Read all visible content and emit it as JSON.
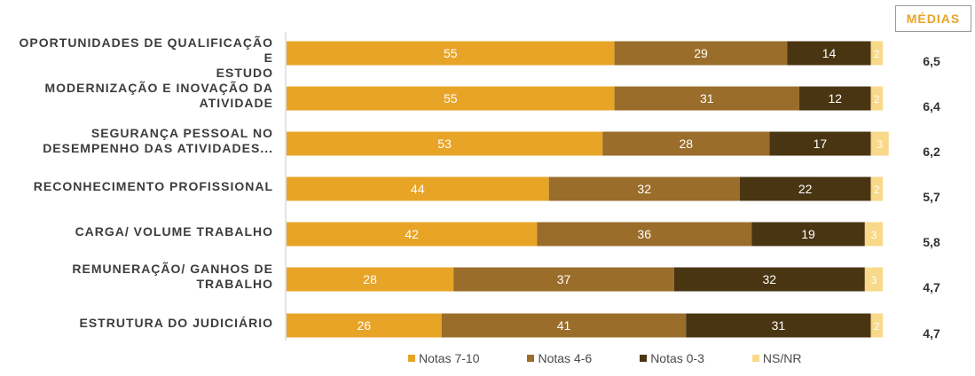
{
  "averages_header": "MÉDIAS",
  "colors": {
    "notas_7_10": "#E8A427",
    "notas_4_6": "#9A6D2B",
    "notas_0_3": "#4A3513",
    "ns_nr": "#F8D98A"
  },
  "chart_data": {
    "type": "bar",
    "orientation": "horizontal",
    "stacked": true,
    "categories": [
      "OPORTUNIDADES DE QUALIFICAÇÃO E ESTUDO",
      "MODERNIZAÇÃO E INOVAÇÃO DA ATIVIDADE",
      "SEGURANÇA PESSOAL NO DESEMPENHO DAS ATIVIDADES...",
      "RECONHECIMENTO PROFISSIONAL",
      "CARGA/ VOLUME TRABALHO",
      "REMUNERAÇÃO/ GANHOS DE TRABALHO",
      "ESTRUTURA DO JUDICIÁRIO"
    ],
    "category_labels": [
      "OPORTUNIDADES DE QUALIFICAÇÃO E\nESTUDO",
      "MODERNIZAÇÃO E INOVAÇÃO DA\nATIVIDADE",
      "SEGURANÇA PESSOAL NO\nDESEMPENHO DAS ATIVIDADES...",
      "RECONHECIMENTO PROFISSIONAL",
      "CARGA/ VOLUME TRABALHO",
      "REMUNERAÇÃO/ GANHOS DE\nTRABALHO",
      "ESTRUTURA DO JUDICIÁRIO"
    ],
    "series": [
      {
        "name": "Notas 7-10",
        "values": [
          55,
          55,
          53,
          44,
          42,
          28,
          26
        ]
      },
      {
        "name": "Notas 4-6",
        "values": [
          29,
          31,
          28,
          32,
          36,
          37,
          41
        ]
      },
      {
        "name": "Notas 0-3",
        "values": [
          14,
          12,
          17,
          22,
          19,
          32,
          31
        ]
      },
      {
        "name": "NS/NR",
        "values": [
          2,
          2,
          3,
          2,
          3,
          3,
          2
        ]
      }
    ],
    "averages": [
      "6,5",
      "6,4",
      "6,2",
      "5,7",
      "5,8",
      "4,7",
      "4,7"
    ],
    "xlim": [
      0,
      100
    ],
    "legend_position": "bottom",
    "grid": false
  }
}
